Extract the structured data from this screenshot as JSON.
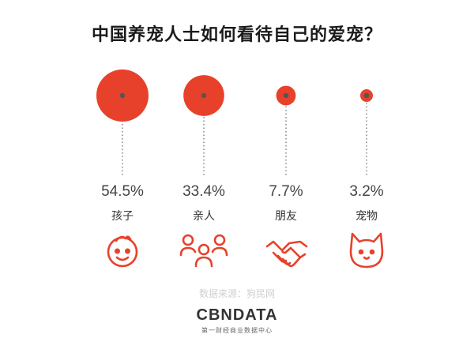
{
  "title": "中国养宠人士如何看待自己的爱宠？",
  "colors": {
    "accent": "#e8412b",
    "dot": "#555555",
    "value_text": "#444444",
    "label_text": "#333333"
  },
  "chart_data": {
    "type": "bubble",
    "title": "中国养宠人士如何看待自己的爱宠？",
    "categories": [
      "孩子",
      "亲人",
      "朋友",
      "宠物"
    ],
    "values": [
      54.5,
      33.4,
      7.7,
      3.2
    ],
    "value_labels": [
      "54.5%",
      "33.4%",
      "7.7%",
      "3.2%"
    ],
    "unit": "%",
    "icons": [
      "child-face-icon",
      "family-icon",
      "handshake-icon",
      "cat-face-icon"
    ]
  },
  "source": "数据来源：狗民网",
  "logo": {
    "main": "CBNDATA",
    "sub": "第一财经商业数据中心"
  }
}
